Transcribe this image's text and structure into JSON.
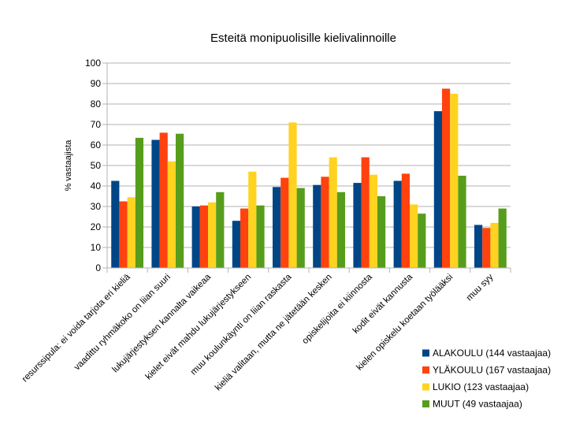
{
  "chart_data": {
    "type": "bar",
    "title": "Esteitä monipuolisille kielivalinnoille",
    "xlabel": "",
    "ylabel": "% vastaajista",
    "ylim": [
      0,
      100
    ],
    "ytick_step": 10,
    "yticks": [
      "0",
      "10",
      "20",
      "30",
      "40",
      "50",
      "60",
      "70",
      "80",
      "90",
      "100"
    ],
    "grid": true,
    "legend_position": "bottom-right",
    "categories": [
      "resurssipula: ei voida tarjota eri kieliä",
      "vaadittu ryhmäkoko on liian suuri",
      "lukujärjestyksen kannalta vaikeaa",
      "kielet eivät mahdu lukujärjestykseen",
      "muu koulunkäynti on liian raskasta",
      "kieliä valitaan, mutta ne jätetään kesken",
      "opiskelijoita ei kiinnosta",
      "kodit eivät kannusta",
      "kielen opiskelu koetaan työlääksi",
      "muu syy"
    ],
    "series": [
      {
        "name": "ALAKOULU (144 vastaajaa)",
        "color": "#004586",
        "values": [
          42.5,
          62.5,
          30,
          23,
          39.5,
          40.5,
          41.5,
          42.5,
          76.5,
          21
        ]
      },
      {
        "name": "YLÄKOULU (167 vastaajaa)",
        "color": "#ff420e",
        "values": [
          32.5,
          66,
          30.5,
          29,
          44,
          44.5,
          54,
          46,
          87.5,
          19.5
        ]
      },
      {
        "name": "LUKIO (123 vastaajaa)",
        "color": "#ffd320",
        "values": [
          34.5,
          52,
          32,
          47,
          71,
          54,
          45.5,
          31,
          85,
          22
        ]
      },
      {
        "name": "MUUT (49 vastaajaa)",
        "color": "#579d1c",
        "values": [
          63.5,
          65.5,
          37,
          30.5,
          39,
          37,
          35,
          26.5,
          45,
          29
        ]
      }
    ]
  }
}
